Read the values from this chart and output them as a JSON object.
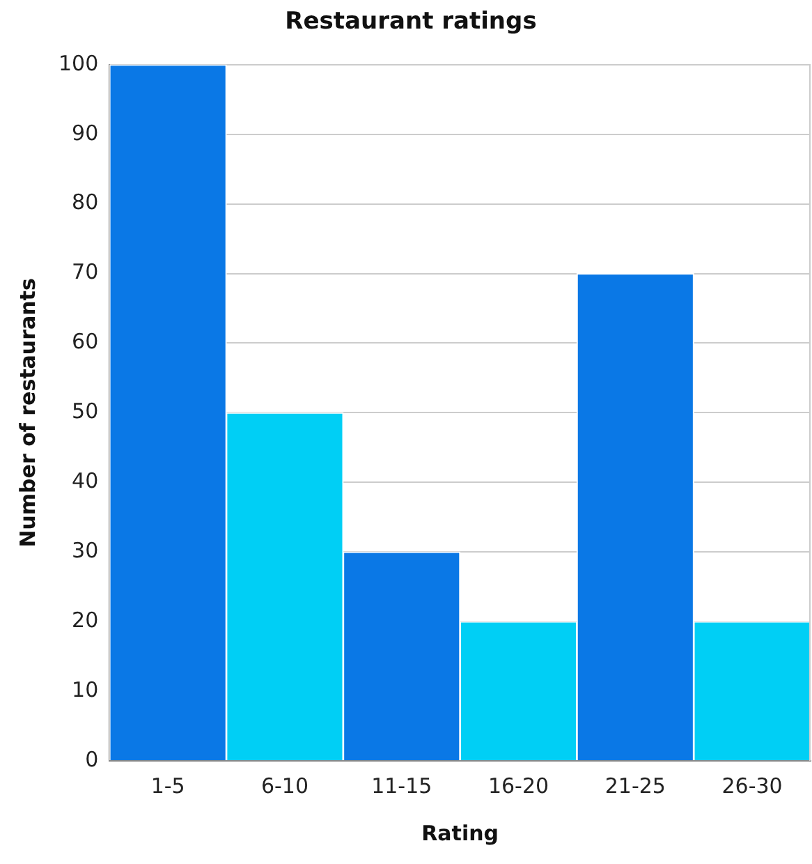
{
  "chart_data": {
    "type": "bar",
    "title": "Restaurant ratings",
    "xlabel": "Rating",
    "ylabel": "Number of restaurants",
    "categories": [
      "1-5",
      "6-10",
      "11-15",
      "16-20",
      "21-25",
      "26-30"
    ],
    "values": [
      100,
      50,
      30,
      20,
      70,
      20
    ],
    "colors": [
      "#0a78e6",
      "#00cff5",
      "#0a78e6",
      "#00cff5",
      "#0a78e6",
      "#00cff5"
    ],
    "ylim": [
      0,
      100
    ],
    "yticks": [
      0,
      10,
      20,
      30,
      40,
      50,
      60,
      70,
      80,
      90,
      100
    ],
    "grid": "y",
    "legend": false
  }
}
